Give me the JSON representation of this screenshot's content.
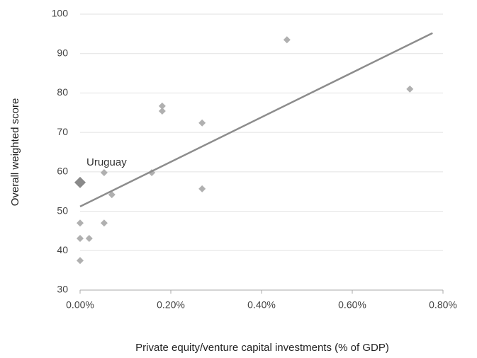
{
  "chart_data": {
    "type": "scatter",
    "xlabel": "Private equity/venture capital investments (% of GDP)",
    "ylabel": "Overall weighted score",
    "x": [
      0,
      0,
      0.02,
      0,
      0.053,
      0.053,
      0.07,
      0.158,
      0.181,
      0.181,
      0.269,
      0.269,
      0.456,
      0.727
    ],
    "y": [
      47,
      43.1,
      43.1,
      37.5,
      59.8,
      47,
      54.2,
      59.8,
      76.7,
      75.4,
      72.4,
      55.7,
      93.5,
      81
    ],
    "color": "#b0b0b0",
    "highlight": {
      "label": "Uruguay",
      "x": 0,
      "y": 57.3,
      "color": "#8a8a8a"
    },
    "trendline": {
      "x": [
        0,
        0.777
      ],
      "y": [
        51.2,
        95.2
      ],
      "color": "#8c8c8c"
    },
    "xlim": [
      0,
      0.8
    ],
    "xticks": [
      {
        "value": 0,
        "label": "0.00%"
      },
      {
        "value": 0.2,
        "label": "0.20%"
      },
      {
        "value": 0.4,
        "label": "0.40%"
      },
      {
        "value": 0.6,
        "label": "0.60%"
      },
      {
        "value": 0.8,
        "label": "0.80%"
      }
    ],
    "ylim": [
      30,
      100
    ],
    "yticks": [
      30,
      40,
      50,
      60,
      70,
      80,
      90,
      100
    ],
    "grid": true
  }
}
